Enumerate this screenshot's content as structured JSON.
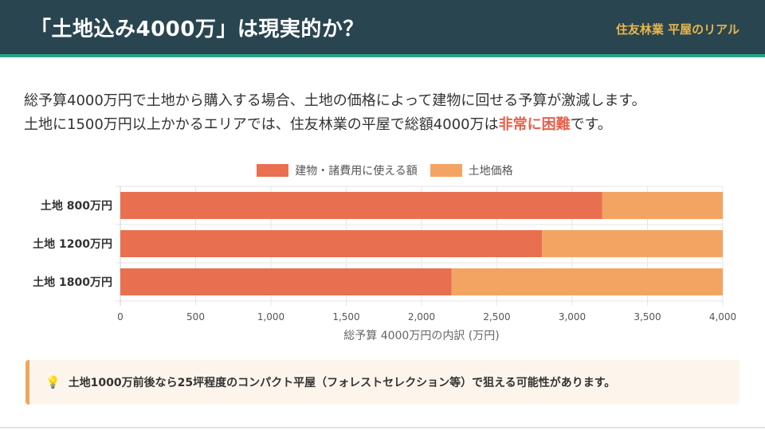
{
  "header": {
    "title": "「土地込み4000万」は現実的か？",
    "brand": "住友林業 平屋のリアル"
  },
  "intro": {
    "line1": "総予算4000万円で土地から購入する場合、土地の価格によって建物に回せる予算が激減します。",
    "line2_before": "土地に1500万円以上かかるエリアでは、住友林業の平屋で総額4000万は",
    "line2_emph": "非常に困難",
    "line2_after": "です。"
  },
  "legend": {
    "building": "建物・諸費用に使える額",
    "land": "土地価格"
  },
  "colors": {
    "building": "#e87050",
    "land": "#f3a462",
    "header_bg": "#294550",
    "accent": "#2aa486",
    "emphasis": "#e8604a"
  },
  "chart_data": {
    "type": "bar",
    "orientation": "horizontal",
    "stacked": true,
    "categories": [
      "土地 800万円",
      "土地 1200万円",
      "土地 1800万円"
    ],
    "series": [
      {
        "name": "建物・諸費用に使える額",
        "values": [
          3200,
          2800,
          2200
        ]
      },
      {
        "name": "土地価格",
        "values": [
          800,
          1200,
          1800
        ]
      }
    ],
    "xlim": [
      0,
      4000
    ],
    "xticks": [
      0,
      500,
      1000,
      1500,
      2000,
      2500,
      3000,
      3500,
      4000
    ],
    "xtick_labels": [
      "0",
      "500",
      "1,000",
      "1,500",
      "2,000",
      "2,500",
      "3,000",
      "3,500",
      "4,000"
    ],
    "xlabel": "総予算 4000万円の内訳 (万円)",
    "legend_position": "top-center",
    "grid": true
  },
  "note": {
    "icon": "lightbulb-icon",
    "text": "土地1000万前後なら25坪程度のコンパクト平屋（フォレストセレクション等）で狙える可能性があります。"
  }
}
